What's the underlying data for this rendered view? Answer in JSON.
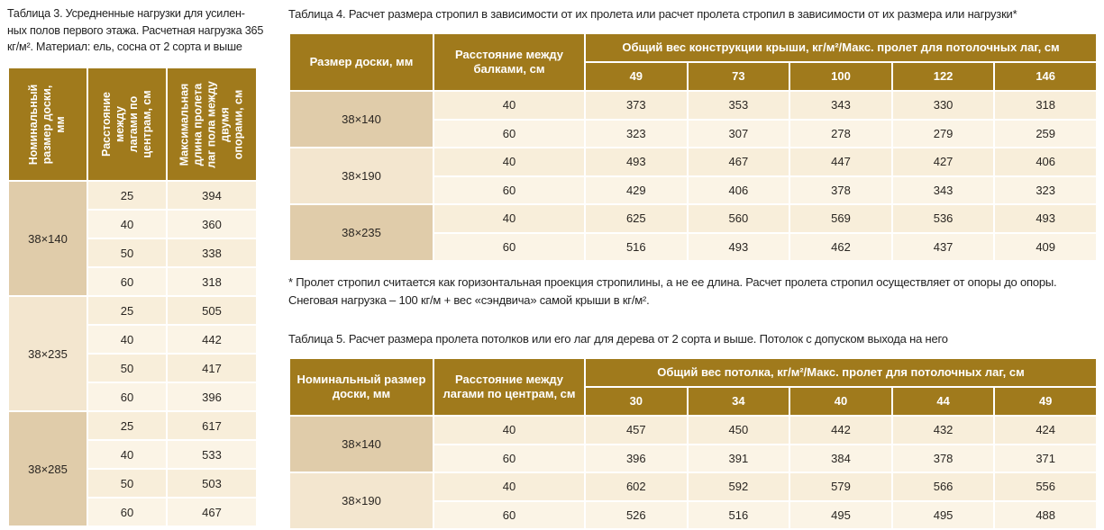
{
  "table3": {
    "caption": "Таблица 3. Усредненные нагрузки для усилен-ных полов первого этажа. Расчетная нагрузка 365 кг/м². Материал: ель, сосна от 2 сорта и выше",
    "headers": [
      "Номинальный размер доски, мм",
      "Расстояние между лагами по центрам, см",
      "Максимальная длина пролета лаг пола между двумя опорами, см"
    ],
    "groups": [
      {
        "size": "38×140",
        "rows": [
          [
            "25",
            "394"
          ],
          [
            "40",
            "360"
          ],
          [
            "50",
            "338"
          ],
          [
            "60",
            "318"
          ]
        ]
      },
      {
        "size": "38×235",
        "rows": [
          [
            "25",
            "505"
          ],
          [
            "40",
            "442"
          ],
          [
            "50",
            "417"
          ],
          [
            "60",
            "396"
          ]
        ]
      },
      {
        "size": "38×285",
        "rows": [
          [
            "25",
            "617"
          ],
          [
            "40",
            "533"
          ],
          [
            "50",
            "503"
          ],
          [
            "60",
            "467"
          ]
        ]
      }
    ]
  },
  "table4": {
    "caption": "Таблица 4. Расчет размера стропил в зависимости от их пролета или расчет пролета стропил в зависимости от их размера или нагрузки*",
    "header_size": "Размер доски, мм",
    "header_spacing": "Расстояние между балками, см",
    "header_group": "Общий вес конструкции крыши, кг/м²/Макс. пролет для потолочных лаг, см",
    "columns": [
      "49",
      "73",
      "100",
      "122",
      "146"
    ],
    "groups": [
      {
        "size": "38×140",
        "rows": [
          {
            "spacing": "40",
            "values": [
              "373",
              "353",
              "343",
              "330",
              "318"
            ]
          },
          {
            "spacing": "60",
            "values": [
              "323",
              "307",
              "278",
              "279",
              "259"
            ]
          }
        ]
      },
      {
        "size": "38×190",
        "rows": [
          {
            "spacing": "40",
            "values": [
              "493",
              "467",
              "447",
              "427",
              "406"
            ]
          },
          {
            "spacing": "60",
            "values": [
              "429",
              "406",
              "378",
              "343",
              "323"
            ]
          }
        ]
      },
      {
        "size": "38×235",
        "rows": [
          {
            "spacing": "40",
            "values": [
              "625",
              "560",
              "569",
              "536",
              "493"
            ]
          },
          {
            "spacing": "60",
            "values": [
              "516",
              "493",
              "462",
              "437",
              "409"
            ]
          }
        ]
      }
    ]
  },
  "footnote": {
    "line1": "* Пролет стропил считается как горизонтальная проекция стропилины, а не ее длина. Расчет пролета стропил осуществляет от опоры до опоры.",
    "line2": "Снеговая нагрузка – 100 кг/м + вес «сэндвича» самой крыши в кг/м²."
  },
  "table5": {
    "caption": "Таблица 5. Расчет размера пролета потолков или его лаг для дерева от 2 сорта и выше. Потолок с допуском выхода на него",
    "header_size": "Номинальный размер доски, мм",
    "header_spacing": "Расстояние между лагами по центрам, см",
    "header_group": "Общий вес потолка, кг/м²/Макс. пролет для потолочных лаг, см",
    "columns": [
      "30",
      "34",
      "40",
      "44",
      "49"
    ],
    "groups": [
      {
        "size": "38×140",
        "rows": [
          {
            "spacing": "40",
            "values": [
              "457",
              "450",
              "442",
              "432",
              "424"
            ]
          },
          {
            "spacing": "60",
            "values": [
              "396",
              "391",
              "384",
              "378",
              "371"
            ]
          }
        ]
      },
      {
        "size": "38×190",
        "rows": [
          {
            "spacing": "40",
            "values": [
              "602",
              "592",
              "579",
              "566",
              "556"
            ]
          },
          {
            "spacing": "60",
            "values": [
              "526",
              "516",
              "495",
              "495",
              "488"
            ]
          }
        ]
      }
    ]
  }
}
